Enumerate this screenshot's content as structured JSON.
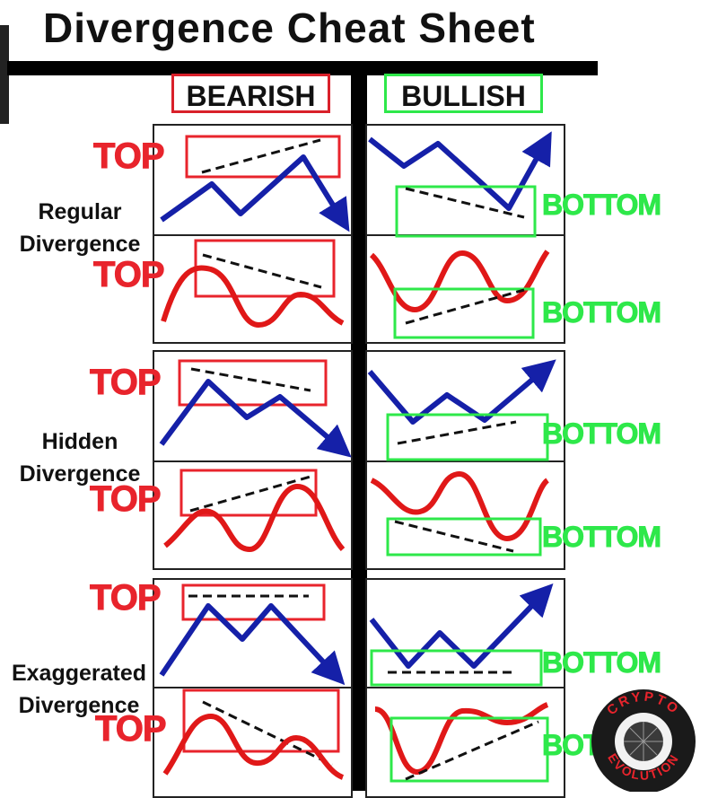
{
  "title": "Divergence Cheat Sheet",
  "headers": {
    "bearish": "BEARISH",
    "bullish": "BULLISH"
  },
  "rows": [
    {
      "label_line1": "Regular",
      "label_line2": "Divergence"
    },
    {
      "label_line1": "Hidden",
      "label_line2": "Divergence"
    },
    {
      "label_line1": "Exaggerated",
      "label_line2": "Divergence"
    }
  ],
  "labels": {
    "top": "TOP",
    "bottom": "BOTTOM"
  },
  "logo": {
    "text_top": "CRYPTO",
    "text_bottom": "EVOLUTION"
  },
  "colors": {
    "bearish_red": "#e8242c",
    "bullish_green": "#2ee84a",
    "price_blue": "#1520a8",
    "oscillator_red": "#e01818"
  }
}
